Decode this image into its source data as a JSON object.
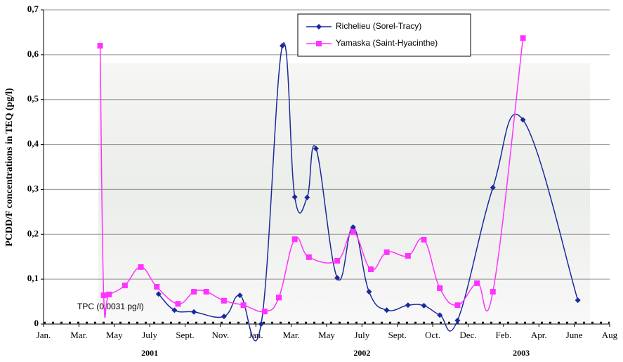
{
  "chart_data": {
    "type": "line",
    "y_label": "PCDD/F concentrations in TEQ (pg/l)",
    "annotation": "TPC (0,0031 pg/l)",
    "tpc": 0.0031,
    "years": [
      "2001",
      "2002",
      "2003"
    ],
    "xlim": [
      0,
      32
    ],
    "xticks": [
      {
        "value": 0,
        "label": "Jan."
      },
      {
        "value": 2,
        "label": "Mar."
      },
      {
        "value": 4,
        "label": "May"
      },
      {
        "value": 6,
        "label": "July"
      },
      {
        "value": 8,
        "label": "Sept."
      },
      {
        "value": 10,
        "label": "Nov."
      },
      {
        "value": 12,
        "label": "Jan."
      },
      {
        "value": 14,
        "label": "Mar."
      },
      {
        "value": 16,
        "label": "May"
      },
      {
        "value": 18,
        "label": "July"
      },
      {
        "value": 20,
        "label": "Sept."
      },
      {
        "value": 22,
        "label": "Oct."
      },
      {
        "value": 24,
        "label": "Dec."
      },
      {
        "value": 26,
        "label": "Feb."
      },
      {
        "value": 28,
        "label": "Apr."
      },
      {
        "value": 30,
        "label": "June"
      },
      {
        "value": 32,
        "label": "Aug"
      }
    ],
    "ylim": [
      0,
      0.7
    ],
    "yticks": [
      0,
      {
        "value": 0.1,
        "label": "0,1"
      },
      {
        "value": 0.2,
        "label": "0,2"
      },
      {
        "value": 0.3,
        "label": "0,3"
      },
      {
        "value": 0.4,
        "label": "0,4"
      },
      {
        "value": 0.5,
        "label": "0,5"
      },
      {
        "value": 0.6,
        "label": "0,6"
      },
      {
        "value": 0.7,
        "label": "0,7"
      }
    ],
    "grid": true,
    "legend": "top",
    "series": [
      {
        "name": "Richelieu (Sorel-Tracy)",
        "color": "#1a2a9c",
        "marker": "diamond",
        "x": [
          6.5,
          7.4,
          8.5,
          10.2,
          11.1,
          12.3,
          13.5,
          14.2,
          14.9,
          15.4,
          16.6,
          17.5,
          18.4,
          19.4,
          20.6,
          21.5,
          22.4,
          23.4,
          25.4,
          27.1,
          30.2
        ],
        "values": [
          0.067,
          0.031,
          0.027,
          0.017,
          0.064,
          0.0,
          0.62,
          0.283,
          0.282,
          0.391,
          0.103,
          0.216,
          0.072,
          0.031,
          0.042,
          0.041,
          0.02,
          0.008,
          0.304,
          0.455,
          0.053
        ]
      },
      {
        "name": "Yamaska (Saint-Hyacinthe)",
        "color": "#ff33ff",
        "marker": "square",
        "x": [
          3.2,
          3.4,
          3.7,
          4.6,
          5.5,
          6.4,
          7.6,
          8.5,
          9.2,
          10.2,
          11.3,
          12.5,
          13.3,
          14.2,
          15.0,
          16.6,
          17.5,
          18.5,
          19.4,
          20.6,
          21.5,
          22.4,
          23.4,
          24.5,
          25.4,
          27.1
        ],
        "values": [
          0.62,
          0.064,
          0.066,
          0.086,
          0.127,
          0.083,
          0.045,
          0.072,
          0.072,
          0.052,
          0.042,
          0.028,
          0.059,
          0.189,
          0.149,
          0.141,
          0.205,
          0.122,
          0.16,
          0.152,
          0.188,
          0.08,
          0.042,
          0.091,
          0.072,
          0.637
        ]
      }
    ]
  }
}
